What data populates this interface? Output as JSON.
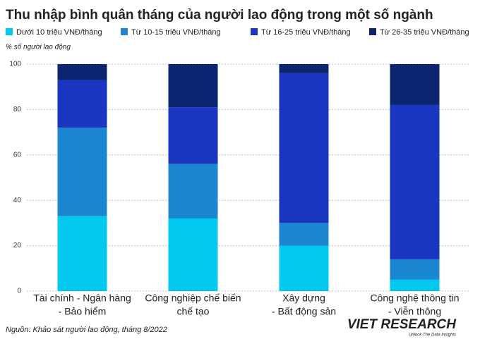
{
  "chart_data": {
    "type": "stacked_bar",
    "title": "Thu nhập bình quân tháng của người lao động trong một số ngành",
    "y_label": "% số người lao động",
    "categories": [
      [
        "Tài chính - Ngân hàng",
        "- Bảo hiểm"
      ],
      [
        "Công nghiệp chế biến",
        "chế tạo"
      ],
      [
        "Xây dựng",
        "- Bất động sản"
      ],
      [
        "Công nghệ thông tin",
        "- Viễn thông"
      ]
    ],
    "series": [
      {
        "name": "Dưới 10 triệu VNĐ/tháng",
        "color": "#00c8ef",
        "values": [
          33,
          32,
          20,
          5
        ]
      },
      {
        "name": "Từ 10-15 triệu VNĐ/tháng",
        "color": "#1b87d1",
        "values": [
          39,
          24,
          10,
          9
        ]
      },
      {
        "name": "Từ 16-25 triệu VNĐ/tháng",
        "color": "#1a35bf",
        "values": [
          21,
          25,
          66,
          68
        ]
      },
      {
        "name": "Từ 26-35 triệu VNĐ/tháng",
        "color": "#0d2570",
        "values": [
          7,
          19,
          4,
          18
        ]
      }
    ],
    "ylim": [
      0,
      100
    ],
    "yticks": [
      0,
      20,
      40,
      60,
      80,
      100
    ],
    "grid": true,
    "source": "Nguồn: Khảo sát người lao động, tháng 8/2022"
  },
  "brand": {
    "name": "VIET RESEARCH",
    "tagline": "Unlock The Data Insights"
  }
}
